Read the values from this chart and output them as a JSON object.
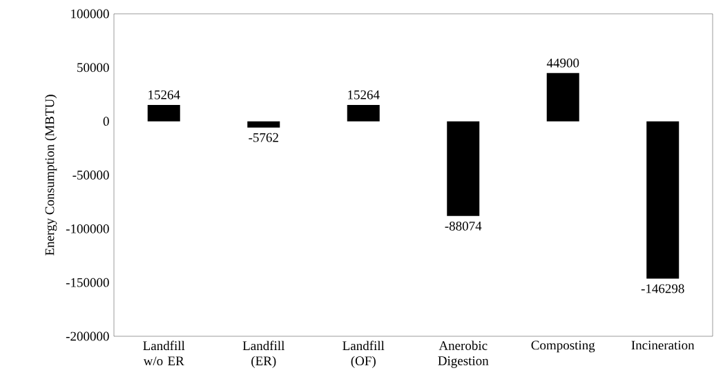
{
  "chart_data": {
    "type": "bar",
    "ylabel": "Energy Consumption (MBTU)",
    "categories": [
      "Landfill w/o ER",
      "Landfill (ER)",
      "Landfill (OF)",
      "Anerobic Digestion",
      "Composting",
      "Incineration"
    ],
    "values": [
      15264,
      -5762,
      15264,
      -88074,
      44900,
      -146298
    ],
    "color": "#000000",
    "ylim": [
      -200000,
      100000
    ],
    "yticks": [
      -200000,
      -150000,
      -100000,
      -50000,
      0,
      50000,
      100000
    ],
    "data_labels": true
  }
}
